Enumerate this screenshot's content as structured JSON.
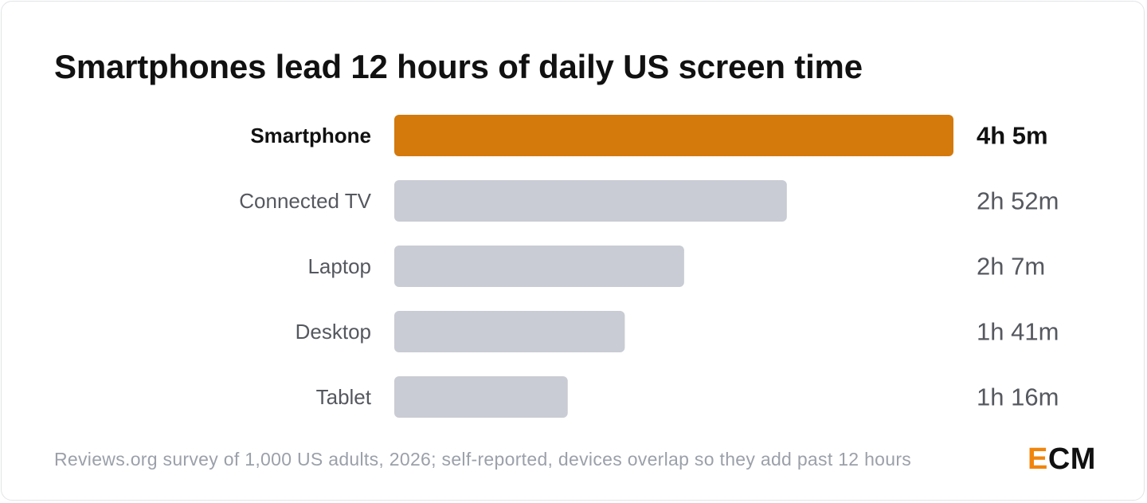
{
  "chart_data": {
    "type": "bar",
    "orientation": "horizontal",
    "title": "Smartphones lead 12 hours of daily US screen time",
    "categories": [
      "Smartphone",
      "Connected TV",
      "Laptop",
      "Desktop",
      "Tablet"
    ],
    "values_minutes": [
      245,
      172,
      127,
      101,
      76
    ],
    "value_labels": [
      "4h 5m",
      "2h 52m",
      "2h 7m",
      "1h 41m",
      "1h 16m"
    ],
    "highlight_index": 0,
    "xlim": [
      0,
      245
    ],
    "grid": false,
    "legend": "none"
  },
  "colors": {
    "highlight_bar": "#d4790c",
    "default_bar": "#c9ccd4",
    "highlight_text": "#111111",
    "default_label": "#55585f",
    "default_value": "#55585f",
    "logo_accent": "#f0850c"
  },
  "footer": {
    "note": "Reviews.org survey of 1,000 US adults, 2026; self-reported, devices overlap so they add past 12 hours",
    "logo_first": "E",
    "logo_rest": "CM"
  }
}
